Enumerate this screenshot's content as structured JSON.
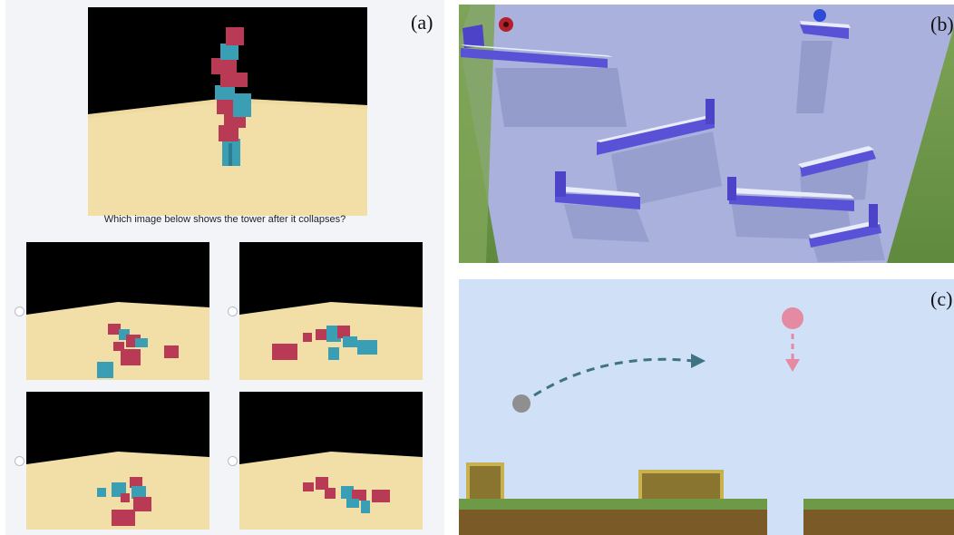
{
  "panel_a": {
    "label": "(a)",
    "question": "Which image below shows the tower after it collapses?",
    "options": [
      {
        "selected": false
      },
      {
        "selected": false
      },
      {
        "selected": false
      },
      {
        "selected": false
      }
    ]
  },
  "panel_b": {
    "label": "(b)"
  },
  "panel_c": {
    "label": "(c)"
  },
  "colors": {
    "block_red": "#b83a55",
    "block_teal": "#3a9fb5",
    "floor_sand": "#f2dfa7",
    "sky_black": "#000000",
    "ramp_purple": "#5a52d6",
    "wall_lavender": "#a9b1dc",
    "grass_green": "#6e9a48",
    "sky_blue": "#cfe0f7",
    "ground_brown": "#7a5a26",
    "container_gold": "#c9b24e",
    "ball_gray": "#8f8f8f",
    "ball_pink": "#e48aa3",
    "arrow_teal": "#3f7384"
  }
}
